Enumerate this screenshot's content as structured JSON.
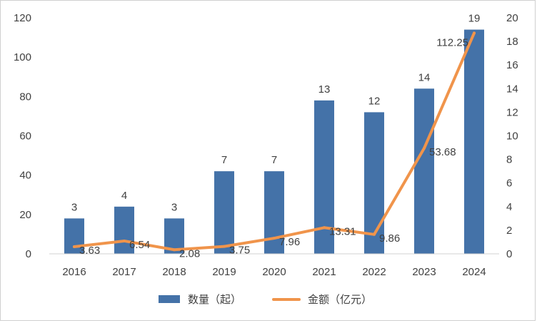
{
  "chart_data": {
    "type": "bar+line",
    "categories": [
      "2016",
      "2017",
      "2018",
      "2019",
      "2020",
      "2021",
      "2022",
      "2023",
      "2024"
    ],
    "series": [
      {
        "name": "数量（起）",
        "type": "bar",
        "axis": "right",
        "values": [
          3,
          4,
          3,
          7,
          7,
          13,
          12,
          14,
          19
        ],
        "labels": [
          "3",
          "4",
          "3",
          "7",
          "7",
          "13",
          "12",
          "14",
          "19"
        ],
        "color": "#4472A8"
      },
      {
        "name": "金额（亿元）",
        "type": "line",
        "axis": "left",
        "values": [
          3.63,
          6.54,
          2.08,
          3.75,
          7.96,
          13.31,
          9.86,
          53.68,
          112.25
        ],
        "labels": [
          "3.63",
          "6.54",
          "2.08",
          "3.75",
          "7.96",
          "13.31",
          "9.86",
          "53.68",
          "112.25"
        ],
        "color": "#F0944B"
      }
    ],
    "y_left": {
      "ylim": [
        0,
        120
      ],
      "ticks": [
        "0",
        "20",
        "40",
        "60",
        "80",
        "100",
        "120"
      ]
    },
    "y_right": {
      "ylim": [
        0,
        20
      ],
      "ticks": [
        "0",
        "2",
        "4",
        "6",
        "8",
        "10",
        "12",
        "14",
        "16",
        "18",
        "20"
      ]
    },
    "grid": false,
    "legend": "bottom"
  }
}
